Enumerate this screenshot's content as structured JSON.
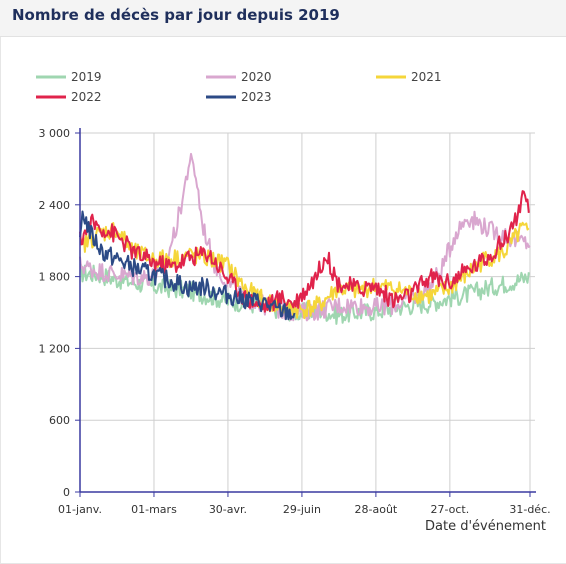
{
  "header": {
    "title": "Nombre de décès par jour depuis 2019"
  },
  "colors": {
    "grid": "#cfcfcf",
    "axis": "#3a3aa0"
  },
  "chart_data": {
    "type": "line",
    "title": "Nombre de décès par jour depuis 2019",
    "xlabel": "Date d'événement",
    "ylabel": "",
    "x_unit": "day of year",
    "xlim": [
      1,
      366
    ],
    "ylim": [
      0,
      3000
    ],
    "yticks": [
      0,
      600,
      1200,
      1800,
      2400,
      3000
    ],
    "ytick_labels": [
      "0",
      "600",
      "1 200",
      "1 800",
      "2 400",
      "3 000"
    ],
    "xticks": [
      1,
      61,
      121,
      181,
      241,
      301,
      366
    ],
    "xtick_labels": [
      "01-janv.",
      "01-mars",
      "30-avr.",
      "29-juin",
      "28-août",
      "27-oct.",
      "31-déc."
    ],
    "grid": true,
    "legend_position": "top",
    "series": [
      {
        "name": "2019",
        "color": "#9fd6b0",
        "days": 365,
        "x": [
          1,
          15,
          30,
          45,
          60,
          75,
          90,
          105,
          120,
          135,
          150,
          165,
          180,
          195,
          210,
          225,
          240,
          255,
          270,
          285,
          300,
          315,
          330,
          345,
          360,
          365
        ],
        "y": [
          1830,
          1820,
          1780,
          1750,
          1720,
          1700,
          1680,
          1640,
          1600,
          1580,
          1550,
          1520,
          1500,
          1520,
          1480,
          1500,
          1510,
          1540,
          1560,
          1580,
          1620,
          1650,
          1700,
          1740,
          1780,
          1800
        ]
      },
      {
        "name": "2020",
        "color": "#d9a7cf",
        "days": 366,
        "x": [
          1,
          15,
          30,
          45,
          60,
          70,
          80,
          85,
          90,
          95,
          100,
          110,
          120,
          135,
          150,
          165,
          180,
          195,
          210,
          225,
          240,
          255,
          270,
          285,
          295,
          305,
          315,
          325,
          335,
          345,
          355,
          366
        ],
        "y": [
          1900,
          1850,
          1820,
          1800,
          1800,
          1900,
          2250,
          2500,
          2780,
          2650,
          2250,
          1900,
          1760,
          1620,
          1560,
          1520,
          1500,
          1520,
          1560,
          1560,
          1540,
          1560,
          1620,
          1720,
          1880,
          2150,
          2300,
          2250,
          2180,
          2150,
          2100,
          2080
        ]
      },
      {
        "name": "2021",
        "color": "#f5d63a",
        "days": 365,
        "x": [
          1,
          15,
          30,
          45,
          60,
          75,
          90,
          105,
          120,
          135,
          150,
          165,
          180,
          195,
          210,
          225,
          240,
          255,
          270,
          285,
          300,
          315,
          330,
          345,
          360,
          365
        ],
        "y": [
          2050,
          2150,
          2200,
          2000,
          1950,
          1950,
          1980,
          1950,
          1900,
          1700,
          1600,
          1540,
          1520,
          1560,
          1700,
          1680,
          1720,
          1700,
          1660,
          1640,
          1700,
          1820,
          1950,
          2000,
          2200,
          2150
        ]
      },
      {
        "name": "2022",
        "color": "#e0234b",
        "days": 365,
        "x": [
          1,
          10,
          20,
          30,
          45,
          60,
          75,
          90,
          105,
          120,
          135,
          150,
          165,
          175,
          185,
          195,
          200,
          210,
          225,
          240,
          255,
          270,
          285,
          300,
          315,
          330,
          345,
          355,
          360,
          365
        ],
        "y": [
          2100,
          2250,
          2200,
          2150,
          2000,
          1920,
          1880,
          1960,
          2000,
          1800,
          1620,
          1550,
          1620,
          1580,
          1700,
          1850,
          2000,
          1750,
          1700,
          1720,
          1600,
          1650,
          1800,
          1750,
          1850,
          1950,
          2100,
          2300,
          2450,
          2350
        ]
      },
      {
        "name": "2023",
        "color": "#2c4a86",
        "days": 175,
        "x": [
          1,
          3,
          10,
          20,
          30,
          40,
          50,
          60,
          70,
          80,
          90,
          100,
          110,
          120,
          130,
          140,
          150,
          160,
          170,
          175
        ],
        "y": [
          2050,
          2350,
          2150,
          2000,
          1950,
          1900,
          1850,
          1820,
          1780,
          1750,
          1700,
          1720,
          1680,
          1650,
          1620,
          1600,
          1580,
          1520,
          1500,
          1480
        ]
      }
    ]
  }
}
